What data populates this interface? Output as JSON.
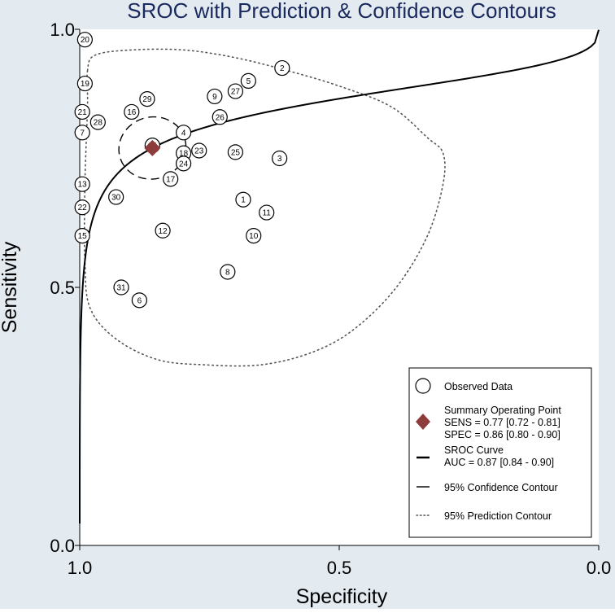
{
  "chart_data": {
    "type": "scatter",
    "title": "SROC with Prediction & Confidence Contours",
    "xlabel": "Specificity",
    "ylabel": "Sensitivity",
    "x_reversed": true,
    "xlim": [
      1.0,
      0.0
    ],
    "ylim": [
      0.0,
      1.0
    ],
    "xticks": [
      {
        "value": 1.0,
        "label": "1.0"
      },
      {
        "value": 0.5,
        "label": "0.5"
      },
      {
        "value": 0.0,
        "label": "0.0"
      }
    ],
    "yticks": [
      {
        "value": 0.0,
        "label": "0.0"
      },
      {
        "value": 0.5,
        "label": "0.5"
      },
      {
        "value": 1.0,
        "label": "1.0"
      }
    ],
    "observed": [
      {
        "id": "1",
        "spec": 0.685,
        "sens": 0.67
      },
      {
        "id": "2",
        "spec": 0.61,
        "sens": 0.925
      },
      {
        "id": "3",
        "spec": 0.615,
        "sens": 0.75
      },
      {
        "id": "4",
        "spec": 0.8,
        "sens": 0.8
      },
      {
        "id": "5",
        "spec": 0.675,
        "sens": 0.9
      },
      {
        "id": "6",
        "spec": 0.885,
        "sens": 0.475
      },
      {
        "id": "7",
        "spec": 0.995,
        "sens": 0.8
      },
      {
        "id": "8",
        "spec": 0.715,
        "sens": 0.53
      },
      {
        "id": "9",
        "spec": 0.74,
        "sens": 0.87
      },
      {
        "id": "10",
        "spec": 0.665,
        "sens": 0.6
      },
      {
        "id": "11",
        "spec": 0.64,
        "sens": 0.645
      },
      {
        "id": "12",
        "spec": 0.84,
        "sens": 0.61
      },
      {
        "id": "13",
        "spec": 0.995,
        "sens": 0.7
      },
      {
        "id": "14",
        "spec": 0.86,
        "sens": 0.775
      },
      {
        "id": "15",
        "spec": 0.995,
        "sens": 0.6
      },
      {
        "id": "16",
        "spec": 0.9,
        "sens": 0.84
      },
      {
        "id": "17",
        "spec": 0.825,
        "sens": 0.71
      },
      {
        "id": "18",
        "spec": 0.8,
        "sens": 0.76
      },
      {
        "id": "19",
        "spec": 0.99,
        "sens": 0.895
      },
      {
        "id": "20",
        "spec": 0.99,
        "sens": 0.98
      },
      {
        "id": "21",
        "spec": 0.995,
        "sens": 0.84
      },
      {
        "id": "22",
        "spec": 0.995,
        "sens": 0.655
      },
      {
        "id": "23",
        "spec": 0.77,
        "sens": 0.765
      },
      {
        "id": "24",
        "spec": 0.8,
        "sens": 0.74
      },
      {
        "id": "25",
        "spec": 0.7,
        "sens": 0.762
      },
      {
        "id": "26",
        "spec": 0.73,
        "sens": 0.83
      },
      {
        "id": "27",
        "spec": 0.7,
        "sens": 0.88
      },
      {
        "id": "28",
        "spec": 0.965,
        "sens": 0.82
      },
      {
        "id": "29",
        "spec": 0.87,
        "sens": 0.865
      },
      {
        "id": "30",
        "spec": 0.93,
        "sens": 0.675
      },
      {
        "id": "31",
        "spec": 0.92,
        "sens": 0.5
      }
    ],
    "summary_point": {
      "spec": 0.86,
      "sens": 0.77
    },
    "sroc_curve": {
      "sens": 0.77,
      "spec": 0.86
    },
    "confidence_contour": {
      "center_spec": 0.86,
      "center_sens": 0.77,
      "rx_spec": 0.065,
      "ry_sens": 0.06,
      "tilt_deg": -15
    },
    "prediction_contour": [
      [
        0.985,
        0.92
      ],
      [
        0.97,
        0.95
      ],
      [
        0.9,
        0.96
      ],
      [
        0.8,
        0.96
      ],
      [
        0.7,
        0.945
      ],
      [
        0.6,
        0.92
      ],
      [
        0.5,
        0.89
      ],
      [
        0.4,
        0.85
      ],
      [
        0.33,
        0.79
      ],
      [
        0.3,
        0.76
      ],
      [
        0.3,
        0.7
      ],
      [
        0.33,
        0.6
      ],
      [
        0.39,
        0.5
      ],
      [
        0.47,
        0.42
      ],
      [
        0.55,
        0.375
      ],
      [
        0.65,
        0.35
      ],
      [
        0.76,
        0.35
      ],
      [
        0.85,
        0.36
      ],
      [
        0.93,
        0.4
      ],
      [
        0.98,
        0.46
      ],
      [
        0.99,
        0.55
      ],
      [
        0.99,
        0.7
      ],
      [
        0.985,
        0.85
      ],
      [
        0.985,
        0.92
      ]
    ],
    "legend": {
      "position": "bottom-right",
      "observed_label": "Observed Data",
      "summary_label": "Summary Operating Point",
      "summary_sens": "SENS = 0.77 [0.72 - 0.81]",
      "summary_spec": "SPEC = 0.86 [0.80 - 0.90]",
      "sroc_label": "SROC Curve",
      "sroc_auc": "AUC = 0.87 [0.84 - 0.90]",
      "confidence_label": "95% Confidence Contour",
      "prediction_label": "95% Prediction Contour"
    },
    "colors": {
      "title": "#1b2a5e",
      "background": "#ffffff",
      "outer_background": "#e3eaf0",
      "summary_marker": "#8e3b3b",
      "curve": "#000000",
      "contour": "#000000",
      "prediction_contour": "#555555"
    }
  }
}
